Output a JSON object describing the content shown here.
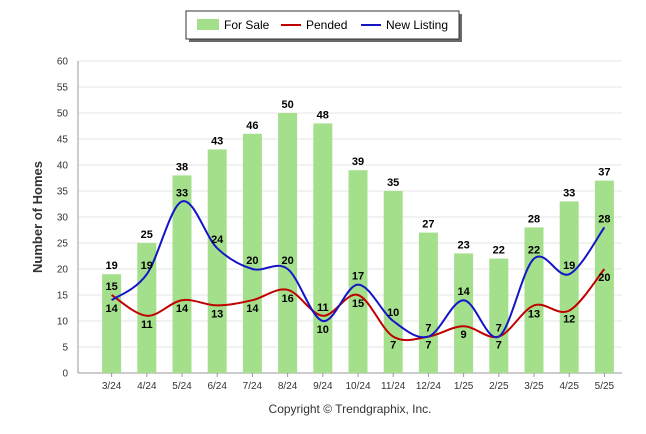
{
  "chart_data": {
    "type": "bar",
    "categories": [
      "3/24",
      "4/24",
      "5/24",
      "6/24",
      "7/24",
      "8/24",
      "9/24",
      "10/24",
      "11/24",
      "12/24",
      "1/25",
      "2/25",
      "3/25",
      "4/25",
      "5/25"
    ],
    "series": [
      {
        "name": "For Sale",
        "type": "bar",
        "color": "#a4e08c",
        "values": [
          19,
          25,
          38,
          43,
          46,
          50,
          48,
          39,
          35,
          27,
          23,
          22,
          28,
          33,
          37
        ]
      },
      {
        "name": "Pended",
        "type": "line",
        "color": "#c00000",
        "values": [
          15,
          11,
          14,
          13,
          14,
          16,
          11,
          15,
          7,
          7,
          9,
          7,
          13,
          12,
          20
        ]
      },
      {
        "name": "New Listing",
        "type": "line",
        "color": "#1515c8",
        "values": [
          14,
          19,
          33,
          24,
          20,
          20,
          10,
          17,
          10,
          7,
          14,
          7,
          22,
          19,
          28
        ]
      }
    ],
    "ylabel": "Number of Homes",
    "xlabel": "",
    "ylim": [
      0,
      60
    ],
    "yticks": [
      0,
      5,
      10,
      15,
      20,
      25,
      30,
      35,
      40,
      45,
      50,
      55,
      60
    ],
    "grid": true,
    "legend_position": "top-center"
  },
  "footer": {
    "copyright": "Copyright © Trendgraphix, Inc."
  }
}
